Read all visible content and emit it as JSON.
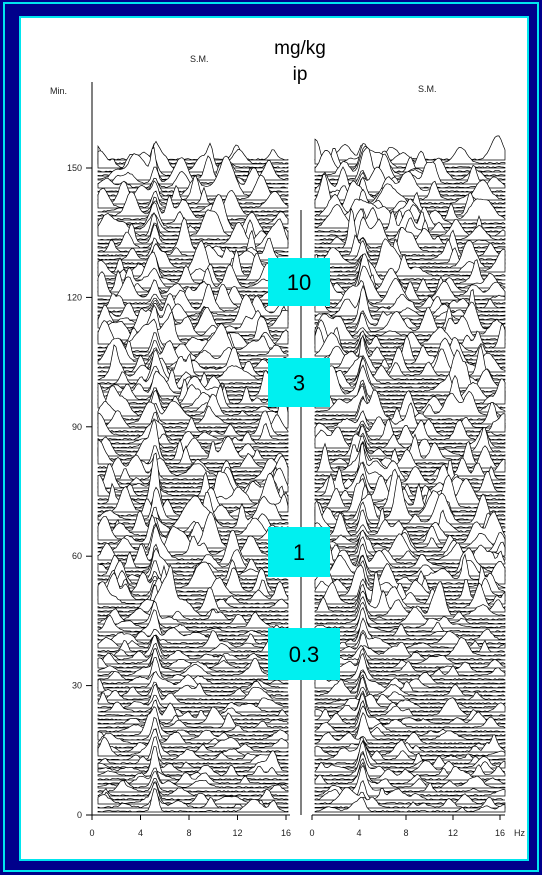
{
  "header": {
    "unit": "mg/kg",
    "route": "ip"
  },
  "y_axis": {
    "label": "Min.",
    "ticks": [
      "0",
      "30",
      "60",
      "90",
      "120",
      "150"
    ]
  },
  "panels": [
    {
      "label": "S.M.",
      "x_ticks": [
        "0",
        "4",
        "8",
        "12",
        "16"
      ]
    },
    {
      "label": "S.M.",
      "x_ticks": [
        "0",
        "4",
        "8",
        "12",
        "16"
      ],
      "unit": "Hz"
    }
  ],
  "doses": [
    "10",
    "3",
    "1",
    "0.3"
  ]
}
